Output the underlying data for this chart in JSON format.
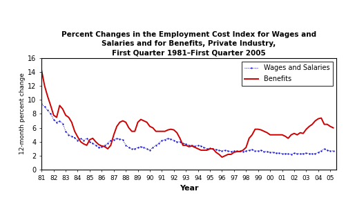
{
  "title_line1": "Percent Changes in the Employment Cost Index for Wages and",
  "title_line2": "Salaries and for Benefits, Private Industry,",
  "title_line3": "First Quarter 1981–First Quarter 2005",
  "xlabel": "Year",
  "ylabel": "12-month percent change",
  "ylim": [
    0,
    16
  ],
  "yticks": [
    0,
    2,
    4,
    6,
    8,
    10,
    12,
    14,
    16
  ],
  "background_color": "#ffffff",
  "wages_color": "#0000cc",
  "benefits_color": "#cc0000",
  "wages_label": "Wages and Salaries",
  "benefits_label": "Benefits",
  "x_tick_labels": [
    "81",
    "82",
    "83",
    "84",
    "85",
    "86",
    "87",
    "88",
    "89",
    "90",
    "91",
    "92",
    "93",
    "94",
    "95",
    "96",
    "97",
    "98",
    "99",
    "00",
    "01",
    "02",
    "03",
    "04",
    "05"
  ],
  "wages_data": [
    9.4,
    9.0,
    8.5,
    8.0,
    7.2,
    6.8,
    7.0,
    6.6,
    5.5,
    5.0,
    4.8,
    4.6,
    4.2,
    4.5,
    4.2,
    4.5,
    4.0,
    3.8,
    3.5,
    3.2,
    3.3,
    3.5,
    3.8,
    4.2,
    4.3,
    4.5,
    4.4,
    4.3,
    3.5,
    3.2,
    3.0,
    3.0,
    3.2,
    3.3,
    3.2,
    3.0,
    2.8,
    3.2,
    3.5,
    3.8,
    4.2,
    4.3,
    4.5,
    4.4,
    4.2,
    4.0,
    4.0,
    3.8,
    3.7,
    3.5,
    3.5,
    3.4,
    3.5,
    3.4,
    3.2,
    3.0,
    3.1,
    3.0,
    2.9,
    2.8,
    2.7,
    2.8,
    2.7,
    2.6,
    2.7,
    2.7,
    2.7,
    2.6,
    2.7,
    2.8,
    2.9,
    2.7,
    2.7,
    2.8,
    2.6,
    2.6,
    2.5,
    2.5,
    2.4,
    2.4,
    2.3,
    2.3,
    2.3,
    2.2,
    2.4,
    2.3,
    2.3,
    2.3,
    2.4,
    2.3,
    2.3,
    2.3,
    2.5,
    2.7,
    3.0,
    2.8,
    2.7,
    2.7
  ],
  "benefits_data": [
    14.2,
    12.0,
    10.5,
    9.2,
    7.8,
    7.5,
    9.2,
    8.7,
    7.8,
    7.5,
    6.8,
    5.5,
    4.7,
    4.0,
    3.7,
    3.5,
    4.3,
    4.5,
    4.0,
    3.6,
    3.4,
    3.3,
    3.0,
    3.5,
    5.0,
    6.2,
    6.8,
    7.0,
    6.8,
    6.0,
    5.5,
    5.5,
    6.8,
    7.2,
    7.0,
    6.8,
    6.2,
    6.0,
    5.5,
    5.5,
    5.5,
    5.5,
    5.7,
    5.8,
    5.7,
    5.3,
    4.5,
    3.5,
    3.5,
    3.3,
    3.4,
    3.2,
    3.0,
    2.8,
    2.8,
    2.8,
    3.0,
    3.0,
    2.5,
    2.2,
    1.8,
    2.0,
    2.2,
    2.2,
    2.5,
    2.6,
    2.6,
    2.8,
    3.2,
    4.5,
    5.0,
    5.8,
    5.8,
    5.7,
    5.5,
    5.3,
    5.0,
    5.0,
    5.0,
    5.0,
    5.0,
    4.8,
    4.5,
    5.0,
    5.2,
    5.0,
    5.3,
    5.2,
    5.8,
    6.2,
    6.5,
    7.0,
    7.3,
    7.4,
    6.5,
    6.5,
    6.2,
    6.0
  ]
}
